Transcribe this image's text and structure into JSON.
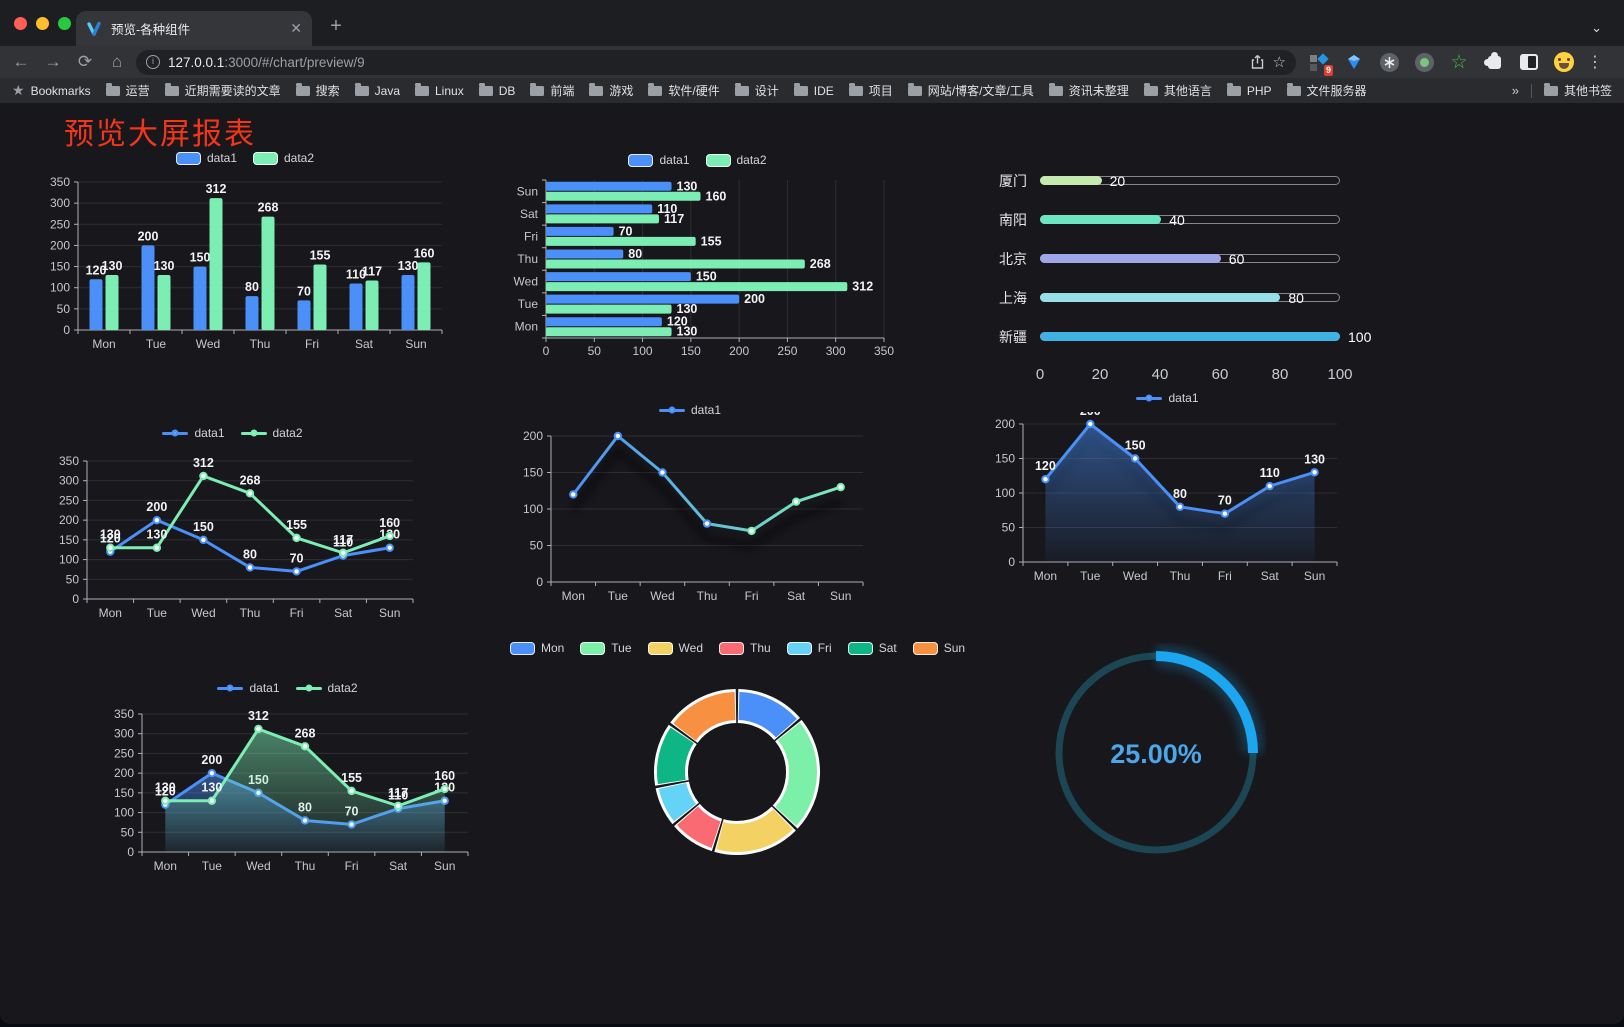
{
  "browser": {
    "tab": {
      "title": "预览-各种组件"
    },
    "url": {
      "host": "127.0.0.1",
      "rest": ":3000/#/chart/preview/9"
    },
    "bookmarks_label": "Bookmarks",
    "bookmarks": [
      "运营",
      "近期需要读的文章",
      "搜索",
      "Java",
      "Linux",
      "DB",
      "前端",
      "游戏",
      "软件/硬件",
      "设计",
      "IDE",
      "项目",
      "网站/博客/文章/工具",
      "资讯未整理",
      "其他语言",
      "PHP",
      "文件服务器"
    ],
    "bookmarks_overflow": "»",
    "other_bookmarks": "其他书签",
    "extension_badge": "9"
  },
  "page": {
    "title": "预览大屏报表",
    "title_color": "#f23619"
  },
  "colors": {
    "data1": "#4a90f8",
    "data2": "#7deeb3",
    "axis": "#aeb1b6",
    "grid": "#2e2f34",
    "tick_text": "#c6c8cc",
    "value_label": "#f2f3f5"
  },
  "chart_data": [
    {
      "id": "c1",
      "render": "vbar",
      "type": "bar",
      "categories": [
        "Mon",
        "Tue",
        "Wed",
        "Thu",
        "Fri",
        "Sat",
        "Sun"
      ],
      "series": [
        {
          "name": "data1",
          "color": "#4a90f8",
          "values": [
            120,
            200,
            150,
            80,
            70,
            110,
            130
          ]
        },
        {
          "name": "data2",
          "color": "#7deeb3",
          "values": [
            130,
            130,
            312,
            268,
            155,
            117,
            160
          ]
        }
      ],
      "ylim": [
        0,
        350
      ],
      "ytick": 50,
      "legend_position": "top",
      "grid": true
    },
    {
      "id": "c2",
      "render": "hbar",
      "type": "bar",
      "categories": [
        "Mon",
        "Tue",
        "Wed",
        "Thu",
        "Fri",
        "Sat",
        "Sun"
      ],
      "series": [
        {
          "name": "data1",
          "color": "#4a90f8",
          "values": [
            120,
            200,
            150,
            80,
            70,
            110,
            130
          ]
        },
        {
          "name": "data2",
          "color": "#7deeb3",
          "values": [
            130,
            130,
            312,
            268,
            155,
            117,
            160
          ]
        }
      ],
      "xlim": [
        0,
        350
      ],
      "xtick": 50,
      "legend_position": "top",
      "grid": true
    },
    {
      "id": "c3",
      "render": "progress",
      "type": "bar",
      "items": [
        {
          "label": "厦门",
          "value": 20,
          "color": "#c4ebad"
        },
        {
          "label": "南阳",
          "value": 40,
          "color": "#6be6c1"
        },
        {
          "label": "北京",
          "value": 60,
          "color": "#a0a7e6"
        },
        {
          "label": "上海",
          "value": 80,
          "color": "#96dee8"
        },
        {
          "label": "新疆",
          "value": 100,
          "color": "#3fb1e3"
        }
      ],
      "xlim": [
        0,
        100
      ],
      "xticks": [
        0,
        20,
        40,
        60,
        80,
        100
      ]
    },
    {
      "id": "c4",
      "render": "line",
      "type": "line",
      "categories": [
        "Mon",
        "Tue",
        "Wed",
        "Thu",
        "Fri",
        "Sat",
        "Sun"
      ],
      "series": [
        {
          "name": "data1",
          "color": "#4a90f8",
          "values": [
            120,
            200,
            150,
            80,
            70,
            110,
            130
          ]
        },
        {
          "name": "data2",
          "color": "#7deeb3",
          "values": [
            130,
            130,
            312,
            268,
            155,
            117,
            160
          ]
        }
      ],
      "ylim": [
        0,
        350
      ],
      "ytick": 50,
      "show_labels": true,
      "legend_position": "top",
      "grid": true
    },
    {
      "id": "c5",
      "render": "line",
      "type": "line",
      "categories": [
        "Mon",
        "Tue",
        "Wed",
        "Thu",
        "Fri",
        "Sat",
        "Sun"
      ],
      "series": [
        {
          "name": "data1",
          "gradient": [
            "#4a90f8",
            "#7deeb3"
          ],
          "values": [
            120,
            200,
            150,
            80,
            70,
            110,
            130
          ]
        }
      ],
      "ylim": [
        0,
        200
      ],
      "ytick": 50,
      "show_labels": false,
      "shadow": true,
      "legend_position": "top",
      "grid": true
    },
    {
      "id": "c6",
      "render": "line",
      "type": "area",
      "categories": [
        "Mon",
        "Tue",
        "Wed",
        "Thu",
        "Fri",
        "Sat",
        "Sun"
      ],
      "series": [
        {
          "name": "data1",
          "color": "#4a90f8",
          "values": [
            120,
            200,
            150,
            80,
            70,
            110,
            130
          ],
          "area": true
        }
      ],
      "ylim": [
        0,
        200
      ],
      "ytick": 50,
      "show_labels": true,
      "shadow": true,
      "legend_position": "top",
      "grid": true
    },
    {
      "id": "c7",
      "render": "line",
      "type": "area",
      "categories": [
        "Mon",
        "Tue",
        "Wed",
        "Thu",
        "Fri",
        "Sat",
        "Sun"
      ],
      "series": [
        {
          "name": "data1",
          "color": "#4a90f8",
          "values": [
            120,
            200,
            150,
            80,
            70,
            110,
            130
          ],
          "area": true
        },
        {
          "name": "data2",
          "color": "#7deeb3",
          "values": [
            130,
            130,
            312,
            268,
            155,
            117,
            160
          ],
          "area": true
        }
      ],
      "ylim": [
        0,
        350
      ],
      "ytick": 50,
      "show_labels": true,
      "legend_position": "top",
      "grid": true
    },
    {
      "id": "c8",
      "render": "donut",
      "type": "pie",
      "slices": [
        {
          "label": "Mon",
          "value": 120,
          "color": "#4a90f8"
        },
        {
          "label": "Tue",
          "value": 200,
          "color": "#7cf0a8"
        },
        {
          "label": "Wed",
          "value": 150,
          "color": "#f3d163"
        },
        {
          "label": "Thu",
          "value": 80,
          "color": "#f96a72"
        },
        {
          "label": "Fri",
          "value": 70,
          "color": "#64d3f6"
        },
        {
          "label": "Sat",
          "value": 110,
          "color": "#0fb685"
        },
        {
          "label": "Sun",
          "value": 130,
          "color": "#f79041"
        }
      ],
      "legend_position": "top"
    },
    {
      "id": "c9",
      "render": "gauge",
      "type": "gauge",
      "percent": 25,
      "value_label": "25.00%",
      "arc_color": "#1ba6ef",
      "track_color": "#1c4653",
      "text_color": "#4ba7e8"
    }
  ]
}
